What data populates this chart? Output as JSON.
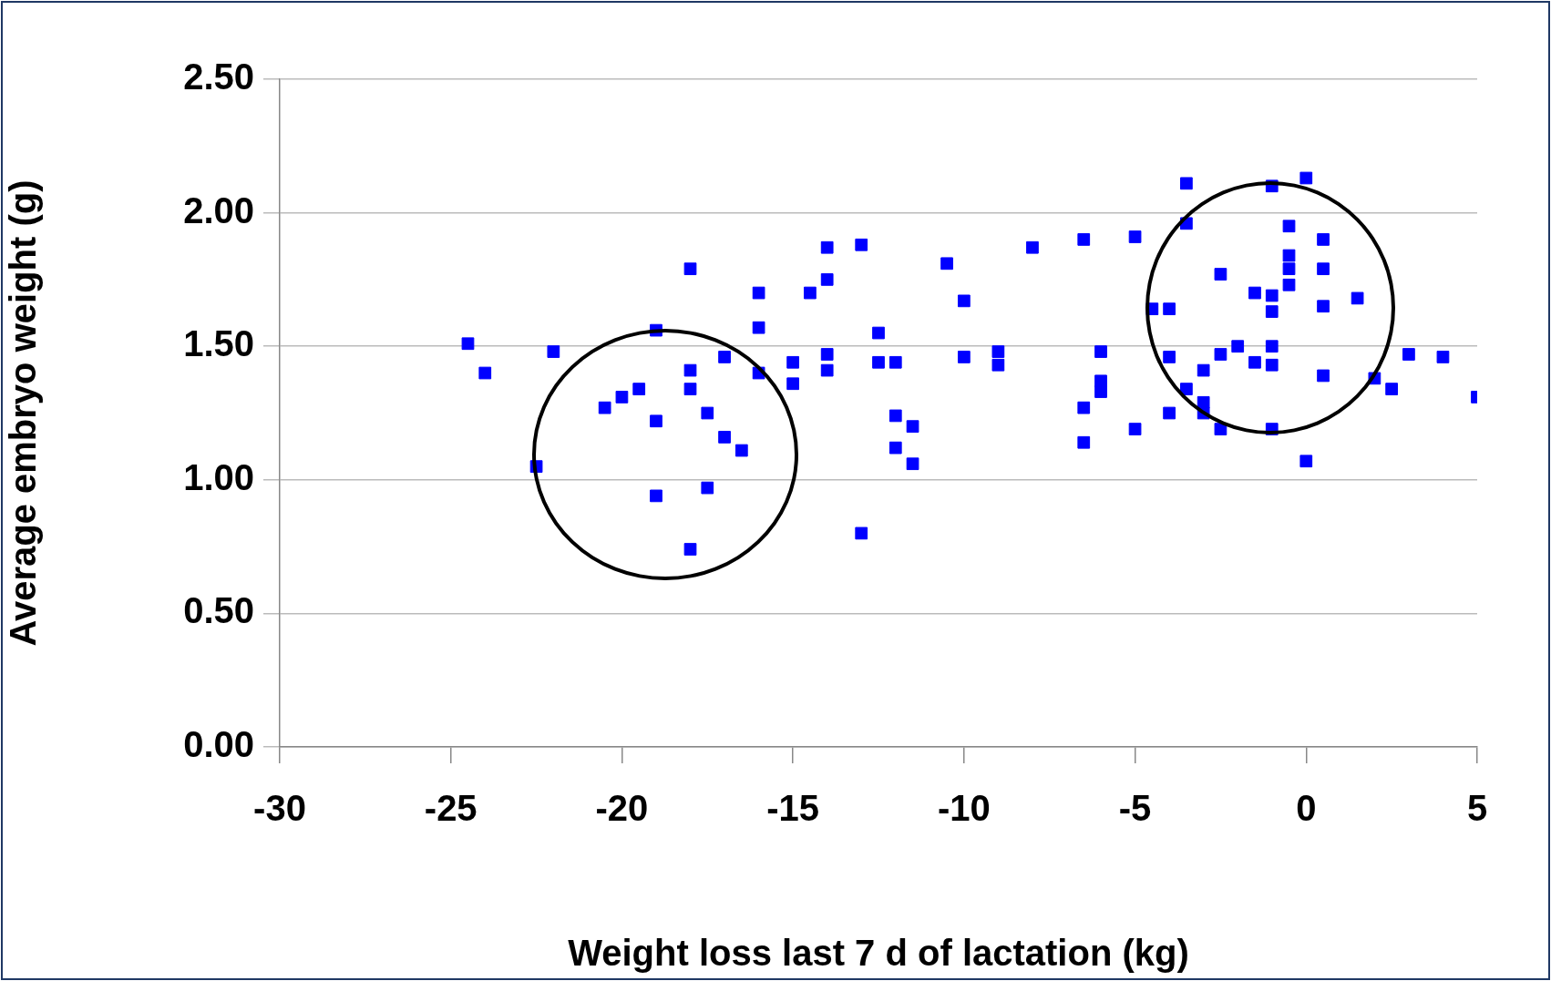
{
  "chart_data": {
    "type": "scatter",
    "xlabel": "Weight loss last 7 d of lactation (kg)",
    "ylabel": "Average embryo weight (g)",
    "x": [
      -24.5,
      -24,
      -22,
      -22.5,
      -20.5,
      -20,
      -19.5,
      -19,
      -19,
      -19,
      -18,
      -18,
      -18,
      -18,
      -17.5,
      -17.5,
      -17,
      -17,
      -16.5,
      -16,
      -16,
      -16,
      -15,
      -15,
      -14.5,
      -14,
      -14,
      -14,
      -14,
      -13,
      -13,
      -12.5,
      -12.5,
      -12,
      -12,
      -12,
      -11.5,
      -11.5,
      -10.5,
      -10,
      -10,
      -9,
      -9,
      -8,
      -6.5,
      -6.5,
      -6.5,
      -6,
      -6,
      -6,
      -5,
      -5,
      -4.5,
      -4,
      -4,
      -4,
      -3.5,
      -3.5,
      -3.5,
      -3,
      -3,
      -3,
      -2.5,
      -2.5,
      -2.5,
      -2,
      -1.5,
      -1.5,
      -1,
      -1,
      -1,
      -1,
      -1,
      -1,
      -0.5,
      -0.5,
      -0.5,
      -0.5,
      0,
      0,
      0.5,
      0.5,
      0.5,
      0.5,
      1.5,
      2,
      2.5,
      3,
      4,
      5
    ],
    "series": [
      {
        "color": "#0000ff",
        "values": [
          1.51,
          1.4,
          1.48,
          1.05,
          1.27,
          1.31,
          1.34,
          1.56,
          1.22,
          0.94,
          1.79,
          1.41,
          1.34,
          0.74,
          1.25,
          0.97,
          1.46,
          1.16,
          1.11,
          1.7,
          1.57,
          1.4,
          1.44,
          1.36,
          1.7,
          1.87,
          1.75,
          1.47,
          1.41,
          1.88,
          0.8,
          1.55,
          1.44,
          1.44,
          1.24,
          1.12,
          1.2,
          1.06,
          1.81,
          1.67,
          1.46,
          1.48,
          1.43,
          1.87,
          1.9,
          1.27,
          1.14,
          1.48,
          1.37,
          1.33,
          1.91,
          1.19,
          1.64,
          1.64,
          1.46,
          1.25,
          2.11,
          1.96,
          1.34,
          1.41,
          1.29,
          1.25,
          1.77,
          1.47,
          1.19,
          1.5,
          1.44,
          1.7,
          2.1,
          1.69,
          1.63,
          1.5,
          1.43,
          1.19,
          1.95,
          1.84,
          1.79,
          1.73,
          2.13,
          1.07,
          1.9,
          1.79,
          1.65,
          1.39,
          1.68,
          1.38,
          1.34,
          1.47,
          1.46,
          1.31
        ]
      }
    ],
    "xlim": [
      -30,
      5
    ],
    "xticks": [
      -30,
      -25,
      -20,
      -15,
      -10,
      -5,
      0,
      5
    ],
    "ylim": [
      0,
      2.5
    ],
    "yticks": [
      {
        "value": 0,
        "label": "0.00"
      },
      {
        "value": 0.5,
        "label": "0.50"
      },
      {
        "value": 1,
        "label": "1.00"
      },
      {
        "value": 1.5,
        "label": "1.50"
      },
      {
        "value": 2,
        "label": "2.00"
      },
      {
        "value": 2.5,
        "label": "2.50"
      }
    ],
    "grid": "y",
    "marker": "square",
    "legend": false
  }
}
